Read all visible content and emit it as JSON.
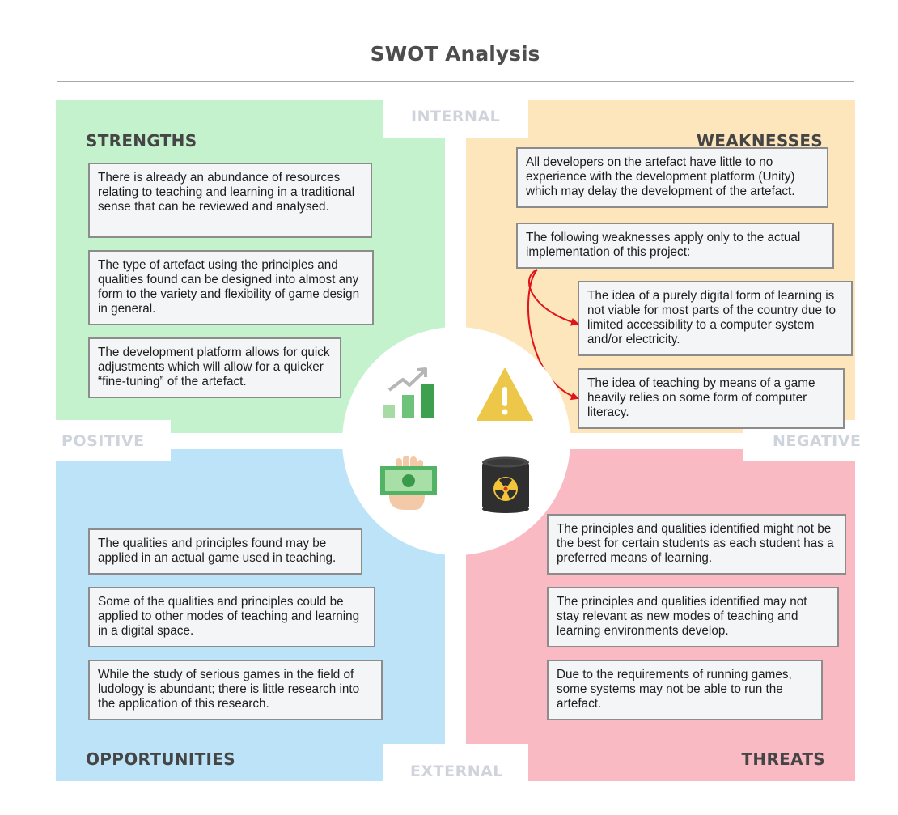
{
  "title": "SWOT Analysis",
  "axes": {
    "internal": "INTERNAL",
    "external": "EXTERNAL",
    "positive": "POSITIVE",
    "negative": "NEGATIVE"
  },
  "strengths": {
    "heading": "STRENGTHS",
    "items": [
      "There is already an abundance of resources relating to teaching and learning in a traditional sense that can be reviewed and analysed.",
      "The type of artefact using the principles and qualities found can be designed into almost any form to the variety and flexibility of game design in general.",
      "The development platform allows for quick adjustments which will allow for a quicker “fine-tuning” of the artefact."
    ]
  },
  "weaknesses": {
    "heading": "WEAKNESSES",
    "items": [
      "All developers on the artefact have little to no experience with the development platform (Unity) which may delay the development of the artefact.",
      "The following weaknesses apply only to the actual implementation of this project:",
      "The idea of a purely digital form of learning is not viable for most parts of the country due to limited accessibility to a computer system and/or electricity.",
      "The idea of teaching by means of a game heavily relies on some form of computer literacy."
    ]
  },
  "opportunities": {
    "heading": "OPPORTUNITIES",
    "items": [
      "The qualities and principles found may be applied in an actual game used in teaching.",
      "Some of the qualities and principles could be applied to other modes of teaching and learning in a digital space.",
      "While the study of serious games in the field of ludology is abundant; there is little research into the application of this research."
    ]
  },
  "threats": {
    "heading": "THREATS",
    "items": [
      "The principles and qualities identified might not be the best for certain students as each student has a preferred means of learning.",
      "The principles and qualities identified may not stay relevant as new modes of teaching and learning environments develop.",
      "Due to the requirements of running games, some systems may not be able to run the artefact."
    ]
  },
  "icons": {
    "strengths": "growth-chart-icon",
    "weaknesses": "warning-icon",
    "opportunities": "money-hand-icon",
    "threats": "radioactive-barrel-icon"
  },
  "colors": {
    "strengths": "#c4f2cc",
    "weaknesses": "#fde5bc",
    "opportunities": "#bde3f9",
    "threats": "#fabac3",
    "arrow": "#e0141b"
  }
}
